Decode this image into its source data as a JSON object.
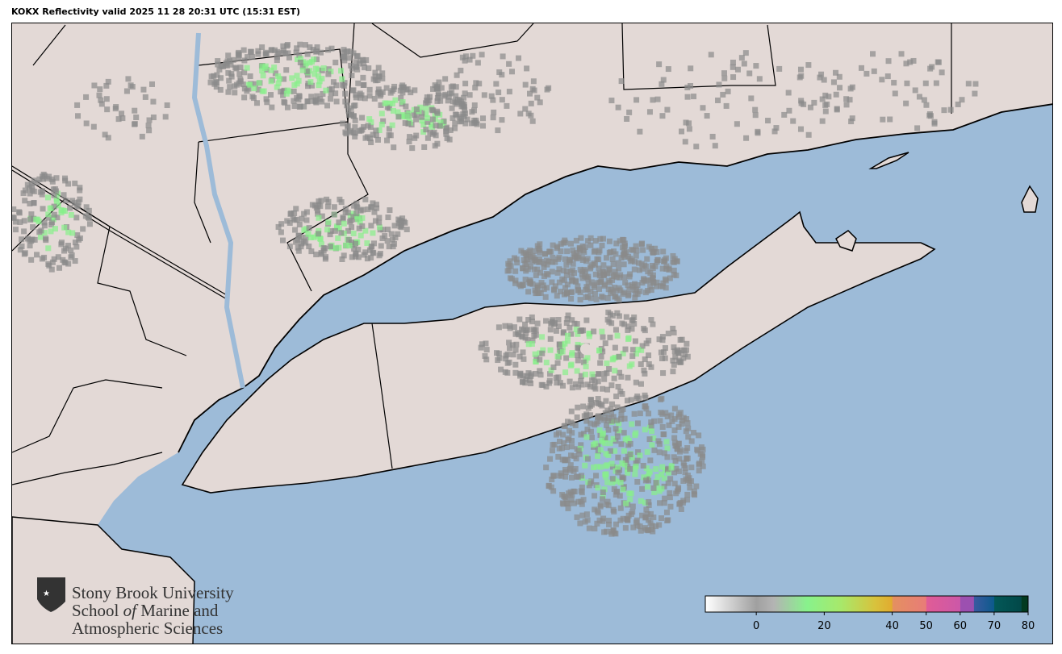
{
  "title": "KOKX Reflectivity valid 2025 11 28 20:31 UTC (15:31 EST)",
  "colors": {
    "water": "#9dbbd8",
    "land": "#e3d9d6",
    "borders": "#000000"
  },
  "logo": {
    "line1": "Stony Brook University",
    "line2a": "School ",
    "line2b": "of",
    "line2c": " Marine and",
    "line3": "Atmospheric Sciences"
  },
  "colorbar": {
    "min": -15,
    "max": 80,
    "ticks": [
      "0",
      "20",
      "40",
      "50",
      "60",
      "70",
      "80"
    ],
    "tick_values": [
      0,
      20,
      40,
      50,
      60,
      70,
      80
    ],
    "stops": [
      {
        "v": -15,
        "c": "#ffffff"
      },
      {
        "v": 0,
        "c": "#a0a0a0"
      },
      {
        "v": 5,
        "c": "#b3b3b3"
      },
      {
        "v": 15,
        "c": "#88f28c"
      },
      {
        "v": 25,
        "c": "#a8e86a"
      },
      {
        "v": 35,
        "c": "#d8c23c"
      },
      {
        "v": 40,
        "c": "#e1ab30"
      },
      {
        "v": 40.1,
        "c": "#e49060"
      },
      {
        "v": 50,
        "c": "#e87c78"
      },
      {
        "v": 50.1,
        "c": "#e05c96"
      },
      {
        "v": 60,
        "c": "#cc58a8"
      },
      {
        "v": 60.1,
        "c": "#9c50b0"
      },
      {
        "v": 64,
        "c": "#9c50b0"
      },
      {
        "v": 64.1,
        "c": "#3a5aa0"
      },
      {
        "v": 70,
        "c": "#0c5a8c"
      },
      {
        "v": 70.1,
        "c": "#035858"
      },
      {
        "v": 78,
        "c": "#024848"
      },
      {
        "v": 78.1,
        "c": "#023a20"
      },
      {
        "v": 80,
        "c": "#023a20"
      }
    ]
  }
}
